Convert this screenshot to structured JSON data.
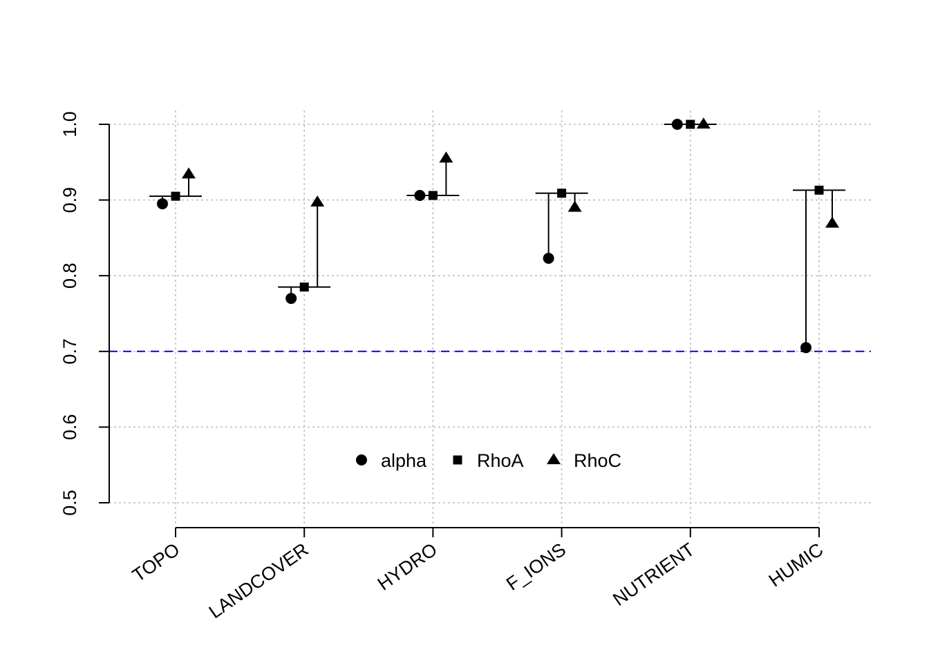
{
  "chart_data": {
    "type": "scatter",
    "categories": [
      "TOPO",
      "LANDCOVER",
      "HYDRO",
      "F_IONS",
      "NUTRIENT",
      "HUMIC"
    ],
    "series": [
      {
        "name": "alpha",
        "marker": "circle",
        "values": [
          0.895,
          0.77,
          0.906,
          0.823,
          1.0,
          0.705
        ]
      },
      {
        "name": "RhoA",
        "marker": "square",
        "values": [
          0.905,
          0.785,
          0.906,
          0.909,
          1.0,
          0.913
        ]
      },
      {
        "name": "RhoC",
        "marker": "triangle",
        "values": [
          0.934,
          0.897,
          0.955,
          0.89,
          1.0,
          0.869
        ]
      }
    ],
    "yticks": [
      "0.5",
      "0.6",
      "0.7",
      "0.8",
      "0.9",
      "1.0"
    ],
    "ylim": [
      0.5,
      1.0
    ],
    "reference_line": {
      "y": 0.7,
      "color": "#0000ff",
      "style": "dashed"
    },
    "grid": true,
    "legend_position": "bottom-center",
    "colors": {
      "points": "#000000",
      "grid": "#bebebe"
    }
  }
}
